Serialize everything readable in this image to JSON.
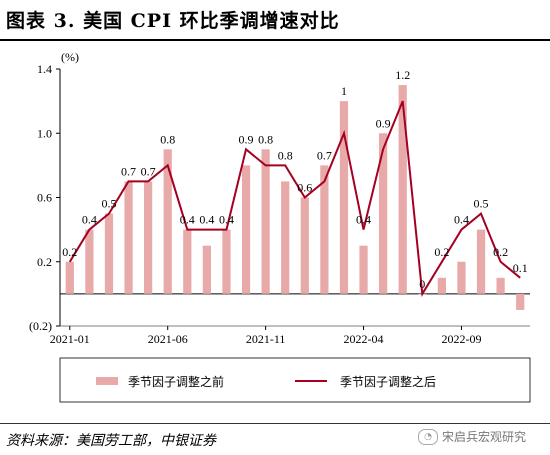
{
  "header": {
    "title": "图表 3. 美国 CPI 环比季调增速对比"
  },
  "footer": {
    "source": "资料来源：美国劳工部，中银证券",
    "watermark": "宋启兵宏观研究"
  },
  "chart_data": {
    "type": "bar",
    "unit_label": "(%)",
    "ylim": [
      -0.2,
      1.4
    ],
    "y_ticks": [
      "(0.2)",
      "0.2",
      "0.6",
      "1.0",
      "1.4"
    ],
    "y_tick_values": [
      -0.2,
      0.2,
      0.6,
      1.0,
      1.4
    ],
    "x_tick_labels": [
      "2021-01",
      "2021-06",
      "2021-11",
      "2022-04",
      "2022-09"
    ],
    "x_tick_indices": [
      0,
      5,
      10,
      15,
      20
    ],
    "categories": [
      "2021-01",
      "2021-02",
      "2021-03",
      "2021-04",
      "2021-05",
      "2021-06",
      "2021-07",
      "2021-08",
      "2021-09",
      "2021-10",
      "2021-11",
      "2021-12",
      "2022-01",
      "2022-02",
      "2022-03",
      "2022-04",
      "2022-05",
      "2022-06",
      "2022-07",
      "2022-08",
      "2022-09",
      "2022-10",
      "2022-11",
      "2022-12"
    ],
    "series": [
      {
        "name": "季节因子调整之前",
        "type": "bar",
        "color": "#E8A9A9",
        "values": [
          0.2,
          0.4,
          0.5,
          0.7,
          0.7,
          0.9,
          0.4,
          0.3,
          0.4,
          0.8,
          0.9,
          0.7,
          0.6,
          0.8,
          1.2,
          0.3,
          1.0,
          1.3,
          0.0,
          0.1,
          0.2,
          0.4,
          0.1,
          -0.1
        ]
      },
      {
        "name": "季节因子调整之后",
        "type": "line",
        "color": "#A50021",
        "values": [
          0.2,
          0.4,
          0.5,
          0.7,
          0.7,
          0.8,
          0.4,
          0.4,
          0.4,
          0.9,
          0.8,
          0.8,
          0.6,
          0.7,
          1.0,
          0.4,
          0.9,
          1.2,
          0.0,
          0.2,
          0.4,
          0.5,
          0.2,
          0.1
        ]
      }
    ],
    "data_labels": [
      "0.2",
      "0.4",
      "0.5",
      "0.7",
      "0.7",
      "0.8",
      "0.4",
      "0.4",
      "0.4",
      "0.9",
      "0.8",
      "0.8",
      "0.6",
      "0.7",
      "1",
      "0.4",
      "0.9",
      "1.2",
      "0",
      "0.2",
      "0.4",
      "0.5",
      "0.2",
      "0.1"
    ],
    "grid": false,
    "legend_position": "bottom"
  }
}
